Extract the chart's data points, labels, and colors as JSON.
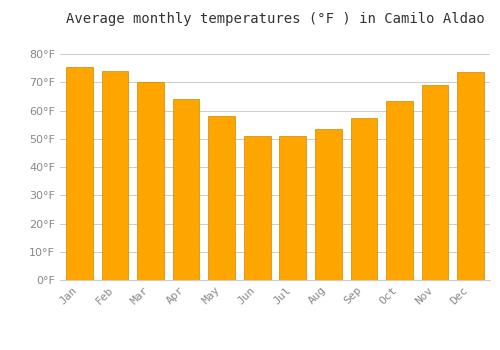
{
  "title": "Average monthly temperatures (°F ) in Camilo Aldao",
  "months": [
    "Jan",
    "Feb",
    "Mar",
    "Apr",
    "May",
    "Jun",
    "Jul",
    "Aug",
    "Sep",
    "Oct",
    "Nov",
    "Dec"
  ],
  "values": [
    75.5,
    74.0,
    70.0,
    64.0,
    58.0,
    51.0,
    51.0,
    53.5,
    57.5,
    63.5,
    69.0,
    73.5
  ],
  "bar_color": "#FFA500",
  "bar_edge_color": "#CC8800",
  "background_color": "#FFFFFF",
  "grid_color": "#CCCCCC",
  "text_color": "#888888",
  "ylim": [
    0,
    88
  ],
  "yticks": [
    0,
    10,
    20,
    30,
    40,
    50,
    60,
    70,
    80
  ],
  "title_fontsize": 10,
  "tick_fontsize": 8
}
